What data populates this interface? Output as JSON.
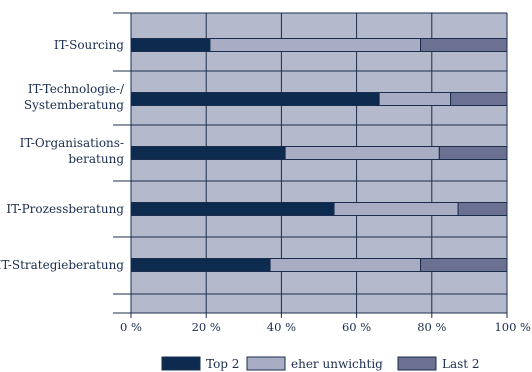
{
  "colors": {
    "background": "#ffffff",
    "plot_bg": "#b5b9cc",
    "grid": "#1a2d4c",
    "axis": "#1a2d4c",
    "text": "#1a2d4c"
  },
  "chart_data": {
    "type": "bar",
    "orientation": "horizontal",
    "stacked": true,
    "categories": [
      [
        "IT-Sourcing"
      ],
      [
        "IT-Technologie-/",
        "Systemberatung"
      ],
      [
        "IT-Organisations-",
        "beratung"
      ],
      [
        "IT-Prozessberatung"
      ],
      [
        "IT-Strategieberatung"
      ]
    ],
    "series": [
      {
        "name": "Top 2",
        "color": "#0d2b4e",
        "values": [
          21,
          66,
          41,
          54,
          37
        ]
      },
      {
        "name": "eher unwichtig",
        "color": "#a9adc3",
        "values": [
          56,
          19,
          41,
          33,
          40
        ]
      },
      {
        "name": "Last 2",
        "color": "#6c7191",
        "values": [
          23,
          15,
          18,
          13,
          23
        ]
      }
    ],
    "xlim": [
      0,
      100
    ],
    "xticks": [
      "0 %",
      "20 %",
      "40 %",
      "60 %",
      "80 %",
      "100 %"
    ],
    "grid": true,
    "legend_position": "bottom"
  }
}
